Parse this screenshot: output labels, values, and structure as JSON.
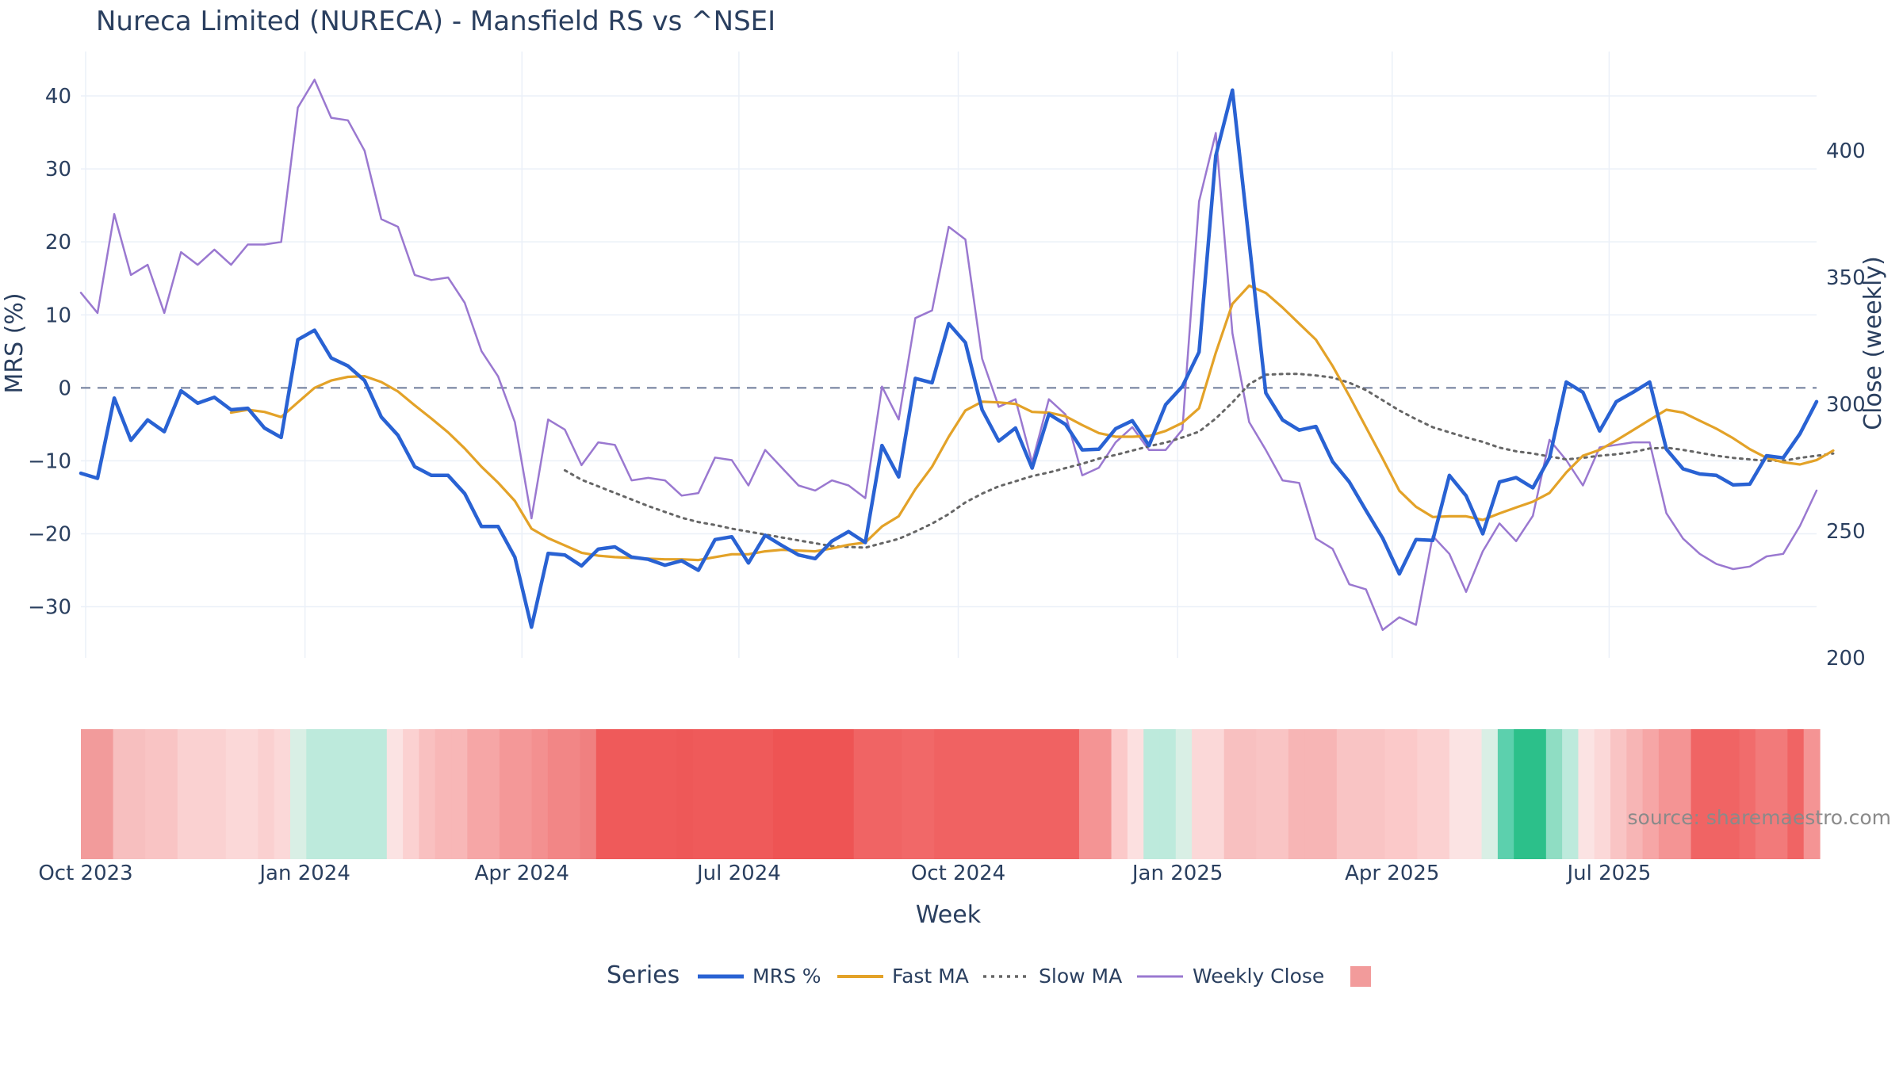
{
  "chart_data": {
    "type": "line",
    "title": "Nureca Limited (NURECA) - Mansfield RS vs ^NSEI",
    "xlabel": "Week",
    "ylabel_left": "MRS (%)",
    "ylabel_right": "Close (weekly)",
    "x_start": "2023-09-29",
    "x_step_days": 7,
    "x_ticks": [
      "Oct 2023",
      "Jan 2024",
      "Apr 2024",
      "Jul 2024",
      "Oct 2024",
      "Jan 2025",
      "Apr 2025",
      "Jul 2025"
    ],
    "y_left_ticks": [
      40,
      30,
      20,
      10,
      0,
      -10,
      -20,
      -30
    ],
    "y_right_ticks": [
      400,
      350,
      300,
      250,
      200
    ],
    "y_left_range": [
      -37,
      45
    ],
    "y_right_range": [
      200,
      436
    ],
    "zero_line": 0,
    "legend": {
      "title": "Series",
      "placement": "bottom-center",
      "items": [
        "MRS %",
        "Fast MA",
        "Slow MA",
        "Weekly Close",
        ""
      ]
    },
    "source": "source: sharemaestro.com",
    "colors": {
      "mrs": "#2962d3",
      "fast": "#e3a228",
      "slow": "#666666",
      "close": "#9a78d0",
      "zero": "#6c7a99",
      "grid": "#ebf0f8",
      "legend_swatch": "#f29b9b"
    },
    "series": [
      {
        "name": "MRS %",
        "axis": "left",
        "values": [
          -11.7,
          -12.4,
          -1.4,
          -7.2,
          -4.4,
          -6.0,
          -0.4,
          -2.1,
          -1.3,
          -3.0,
          -2.8,
          -5.5,
          -6.8,
          6.6,
          7.9,
          4.1,
          3.0,
          1.0,
          -4.0,
          -6.5,
          -10.8,
          -12.0,
          -12.0,
          -14.5,
          -19.0,
          -19.0,
          -23.2,
          -32.8,
          -22.7,
          -22.9,
          -24.4,
          -22.1,
          -21.8,
          -23.2,
          -23.5,
          -24.3,
          -23.7,
          -25.0,
          -20.8,
          -20.4,
          -24.0,
          -20.2,
          -21.6,
          -22.9,
          -23.4,
          -21.0,
          -19.7,
          -21.2,
          -7.9,
          -12.2,
          1.3,
          0.7,
          8.8,
          6.2,
          -3.0,
          -7.3,
          -5.5,
          -11.0,
          -3.6,
          -5.0,
          -8.5,
          -8.4,
          -5.6,
          -4.5,
          -7.9,
          -2.3,
          0.2,
          4.9,
          31.8,
          40.8,
          20.0,
          -0.7,
          -4.4,
          -5.8,
          -5.3,
          -10.1,
          -12.9,
          -16.8,
          -20.6,
          -25.5,
          -20.8,
          -20.9,
          -12.0,
          -14.8,
          -20.0,
          -12.9,
          -12.3,
          -13.7,
          -9.6,
          0.8,
          -0.6,
          -5.9,
          -1.9,
          -0.6,
          0.8,
          -8.4,
          -11.1,
          -11.8,
          -12.0,
          -13.3,
          -13.2,
          -9.3,
          -9.6,
          -6.3,
          -1.9
        ]
      },
      {
        "name": "Fast MA",
        "axis": "left",
        "values": [
          null,
          null,
          null,
          null,
          null,
          null,
          null,
          null,
          null,
          -3.4,
          -3.0,
          -3.3,
          -4.0,
          -2.0,
          0.0,
          1.0,
          1.5,
          1.6,
          0.8,
          -0.5,
          -2.4,
          -4.2,
          -6.1,
          -8.3,
          -10.8,
          -13.0,
          -15.5,
          -19.3,
          -20.6,
          -21.6,
          -22.6,
          -23.0,
          -23.2,
          -23.3,
          -23.4,
          -23.5,
          -23.5,
          -23.6,
          -23.2,
          -22.8,
          -22.8,
          -22.4,
          -22.2,
          -22.3,
          -22.4,
          -22.0,
          -21.5,
          -21.2,
          -19.0,
          -17.6,
          -13.9,
          -10.8,
          -6.7,
          -3.1,
          -1.9,
          -2.0,
          -2.2,
          -3.3,
          -3.4,
          -3.9,
          -5.1,
          -6.2,
          -6.7,
          -6.7,
          -6.6,
          -5.9,
          -4.8,
          -2.8,
          4.8,
          11.5,
          14.0,
          13.0,
          11.0,
          8.8,
          6.6,
          3.0,
          -1.1,
          -5.4,
          -9.7,
          -14.1,
          -16.3,
          -17.7,
          -17.6,
          -17.6,
          -18.1,
          -17.2,
          -16.4,
          -15.6,
          -14.4,
          -11.6,
          -9.3,
          -8.5,
          -7.2,
          -5.8,
          -4.4,
          -3.0,
          -3.4,
          -4.5,
          -5.6,
          -6.9,
          -8.4,
          -9.6,
          -10.2,
          -10.5,
          -9.9,
          -8.6
        ]
      },
      {
        "name": "Slow MA",
        "axis": "left",
        "values": [
          null,
          null,
          null,
          null,
          null,
          null,
          null,
          null,
          null,
          null,
          null,
          null,
          null,
          null,
          null,
          null,
          null,
          null,
          null,
          null,
          null,
          null,
          null,
          null,
          null,
          null,
          null,
          null,
          null,
          -11.3,
          -12.6,
          -13.5,
          -14.4,
          -15.3,
          -16.2,
          -17.0,
          -17.8,
          -18.4,
          -18.8,
          -19.3,
          -19.7,
          -20.1,
          -20.5,
          -20.9,
          -21.3,
          -21.7,
          -21.8,
          -21.9,
          -21.3,
          -20.7,
          -19.7,
          -18.6,
          -17.3,
          -15.7,
          -14.5,
          -13.5,
          -12.8,
          -12.1,
          -11.6,
          -11.0,
          -10.4,
          -9.7,
          -9.2,
          -8.6,
          -8.0,
          -7.5,
          -6.8,
          -6.0,
          -4.2,
          -2.0,
          0.5,
          1.8,
          1.9,
          1.9,
          1.7,
          1.4,
          0.7,
          -0.3,
          -1.7,
          -3.1,
          -4.3,
          -5.4,
          -6.1,
          -6.8,
          -7.4,
          -8.2,
          -8.7,
          -9.0,
          -9.4,
          -9.8,
          -9.6,
          -9.3,
          -9.1,
          -8.8,
          -8.3,
          -8.2,
          -8.5,
          -8.9,
          -9.3,
          -9.6,
          -9.8,
          -10.0,
          -10.0,
          -9.6,
          -9.3,
          -9.0
        ]
      },
      {
        "name": "Weekly Close",
        "axis": "right",
        "values": [
          344,
          336,
          375,
          351,
          355,
          336,
          360,
          355,
          361,
          355,
          363,
          363,
          364,
          417,
          428,
          413,
          412,
          400,
          373,
          370,
          351,
          349,
          350,
          340,
          321,
          311,
          293,
          255,
          294,
          290,
          276,
          285,
          284,
          270,
          271,
          270,
          264,
          265,
          279,
          278,
          268,
          282,
          275,
          268,
          266,
          270,
          268,
          263,
          307,
          294,
          334,
          337,
          370,
          365,
          318,
          299,
          302,
          277,
          302,
          296,
          272,
          275,
          285,
          291,
          282,
          282,
          290,
          380,
          407,
          328,
          293,
          282,
          270,
          269,
          247,
          243,
          229,
          227,
          211,
          216,
          213,
          248,
          241,
          226,
          242,
          253,
          246,
          256,
          286,
          278,
          268,
          283,
          284,
          285,
          285,
          257,
          247,
          241,
          237,
          235,
          236,
          240,
          241,
          252,
          266
        ]
      }
    ],
    "momentum_bands": {
      "label": "",
      "colors": [
        "#f29b9b",
        "#f29b9b",
        "#f7bfbf",
        "#f7bfbf",
        "#f9c4c4",
        "#f9c4c4",
        "#fad1d1",
        "#fad1d1",
        "#fad1d1",
        "#fbd8d8",
        "#fbd8d8",
        "#fad0d0",
        "#fbd8d8",
        "#d9efe5",
        "#bdeadc",
        "#bdeadc",
        "#bdeadc",
        "#bdeadc",
        "#bdeadc",
        "#fbe3e3",
        "#fbd1d1",
        "#f9c0c0",
        "#f8b7b7",
        "#f8b7b7",
        "#f6a6a6",
        "#f6a6a6",
        "#f49898",
        "#f49898",
        "#f39090",
        "#f28686",
        "#f28686",
        "#f08080",
        "#ef5a5a",
        "#ef5a5a",
        "#ef5a5a",
        "#ef5a5a",
        "#ef5a5a",
        "#ee5858",
        "#ef5a5a",
        "#ef5a5a",
        "#ef5a5a",
        "#ef5a5a",
        "#ef5a5a",
        "#ee5454",
        "#ee5454",
        "#ee5454",
        "#ee5454",
        "#ee5454",
        "#f06464",
        "#f06464",
        "#f06464",
        "#f16868",
        "#f16868",
        "#f06262",
        "#f06262",
        "#f06262",
        "#f06262",
        "#f06262",
        "#f06262",
        "#f06262",
        "#f06262",
        "#f06262",
        "#f49494",
        "#f49494",
        "#fbc9c9",
        "#fce0e0",
        "#bdeadc",
        "#bdeadc",
        "#d9efe5",
        "#fbd8d8",
        "#fbd8d8",
        "#f8c0c0",
        "#f8c0c0",
        "#f9c4c4",
        "#f9c4c4",
        "#f7b5b5",
        "#f7b5b5",
        "#f7b5b5",
        "#f9c4c4",
        "#f9c4c4",
        "#f9c4c4",
        "#fbc9c9",
        "#fbc9c9",
        "#fbd1d1",
        "#fbd1d1",
        "#fbe3e3",
        "#fbe3e3",
        "#d9efe5",
        "#5cd0ad",
        "#2cc08a",
        "#2cc08a",
        "#8fddc3",
        "#bdeadc",
        "#fbe3e3",
        "#fbd8d8",
        "#f9c4c4",
        "#f7b5b5",
        "#f6a6a6",
        "#f49494",
        "#f49494",
        "#f06464",
        "#f06464",
        "#f06464",
        "#f16c6c",
        "#f27a7a",
        "#f27a7a",
        "#f06464",
        "#f49494"
      ]
    }
  }
}
